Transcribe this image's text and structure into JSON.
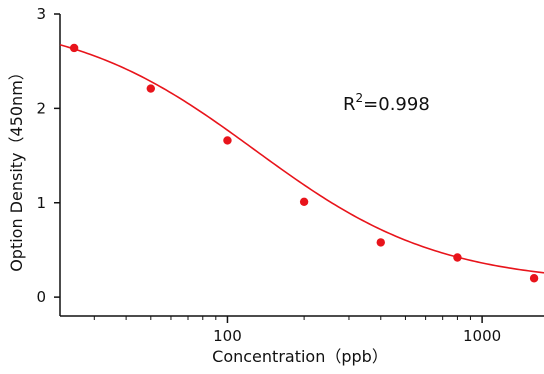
{
  "chart_data": {
    "type": "scatter",
    "title": "",
    "xlabel": "Concentration（ppb）",
    "ylabel": "Option Density（450nm）",
    "xscale": "log",
    "xlim": [
      22,
      1750
    ],
    "ylim": [
      -0.2,
      3
    ],
    "grid": false,
    "x_ticks": [
      100,
      1000
    ],
    "x_tick_labels": [
      "100",
      "1000"
    ],
    "y_ticks": [
      0,
      1,
      2,
      3
    ],
    "y_tick_labels": [
      "0",
      "1",
      "2",
      "3"
    ],
    "series": [
      {
        "x": [
          25,
          50,
          100,
          200,
          400,
          800,
          1600
        ],
        "y": [
          2.64,
          2.21,
          1.66,
          1.01,
          0.58,
          0.42,
          0.2
        ],
        "color": "#e8141b"
      }
    ],
    "fit": {
      "model": "4PL",
      "top": 2.98,
      "bottom": 0.14,
      "ec50": 128,
      "hill": 1.2,
      "color": "#e8141b"
    },
    "annotation": {
      "base": "R",
      "sup": "2",
      "value": "=0.998"
    }
  }
}
